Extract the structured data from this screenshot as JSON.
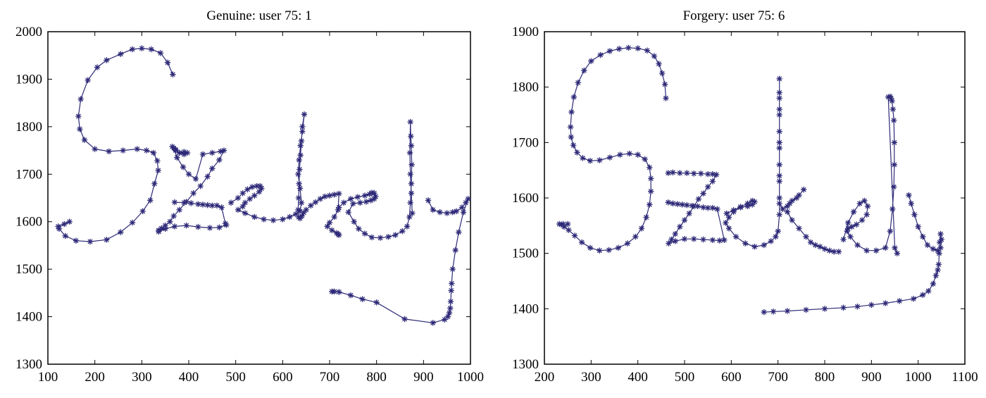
{
  "chart_data": [
    {
      "type": "line",
      "title": "Genuine: user 75: 1",
      "xlabel": "",
      "ylabel": "",
      "xlim": [
        100,
        1000
      ],
      "ylim": [
        1300,
        2000
      ],
      "xticks": [
        100,
        200,
        300,
        400,
        500,
        600,
        700,
        800,
        900,
        1000
      ],
      "yticks": [
        1300,
        1400,
        1500,
        1600,
        1700,
        1800,
        1900,
        2000
      ],
      "grid": false,
      "legend": "none",
      "marker": "asterisk",
      "series": [
        {
          "color": "#2e2a78",
          "x": [
            366,
            355,
            340,
            320,
            300,
            280,
            255,
            225,
            205,
            185,
            170,
            165,
            168,
            178,
            200,
            230,
            260,
            290,
            310,
            325,
            333,
            335,
            327,
            318,
            302,
            280,
            255,
            225,
            190,
            160,
            137,
            124,
            122,
            135,
            146
          ],
          "y": [
            1910,
            1935,
            1955,
            1963,
            1965,
            1963,
            1953,
            1940,
            1925,
            1898,
            1858,
            1822,
            1795,
            1772,
            1753,
            1748,
            1750,
            1753,
            1750,
            1745,
            1728,
            1708,
            1680,
            1645,
            1622,
            1598,
            1578,
            1562,
            1558,
            1560,
            1570,
            1585,
            1590,
            1595,
            1600
          ]
        },
        {
          "color": "#2e2a78",
          "x": [
            365,
            372,
            380,
            390,
            397,
            390,
            380,
            372,
            368,
            375,
            388,
            400,
            415,
            430,
            450,
            468,
            475,
            465,
            450,
            440,
            425,
            410,
            395,
            380,
            368,
            360,
            350,
            342,
            336,
            336,
            350,
            370,
            395,
            420,
            445,
            465,
            480,
            478,
            470,
            460,
            450,
            440,
            430,
            420,
            405,
            390,
            370
          ],
          "y": [
            1758,
            1752,
            1745,
            1742,
            1745,
            1747,
            1745,
            1750,
            1755,
            1735,
            1715,
            1700,
            1690,
            1742,
            1745,
            1748,
            1750,
            1730,
            1712,
            1695,
            1675,
            1660,
            1642,
            1625,
            1612,
            1600,
            1592,
            1586,
            1582,
            1579,
            1585,
            1590,
            1592,
            1589,
            1587,
            1588,
            1593,
            1596,
            1630,
            1634,
            1634,
            1635,
            1636,
            1637,
            1639,
            1640,
            1641
          ]
        },
        {
          "color": "#2e2a78",
          "x": [
            490,
            505,
            515,
            525,
            535,
            545,
            552,
            555,
            550,
            540,
            530,
            520,
            515,
            505,
            520,
            540,
            560,
            580,
            600,
            615,
            628,
            637,
            640,
            637,
            633,
            635,
            638,
            642,
            646,
            642,
            640,
            638,
            636,
            635,
            634,
            633,
            634,
            637,
            641,
            645,
            650,
            660,
            670,
            680,
            690,
            700,
            710,
            720,
            718,
            710,
            700,
            695,
            705,
            715,
            718,
            720
          ],
          "y": [
            1640,
            1650,
            1660,
            1668,
            1673,
            1675,
            1675,
            1670,
            1663,
            1655,
            1648,
            1640,
            1632,
            1625,
            1618,
            1610,
            1605,
            1603,
            1605,
            1610,
            1616,
            1622,
            1640,
            1670,
            1700,
            1730,
            1760,
            1790,
            1826,
            1800,
            1770,
            1740,
            1710,
            1680,
            1650,
            1625,
            1610,
            1607,
            1612,
            1619,
            1625,
            1634,
            1641,
            1648,
            1653,
            1655,
            1657,
            1659,
            1625,
            1610,
            1598,
            1590,
            1582,
            1576,
            1574,
            1572
          ]
        },
        {
          "color": "#2e2a78",
          "x": [
            720,
            730,
            745,
            760,
            775,
            785,
            790,
            795,
            798,
            795,
            788,
            778,
            765,
            750,
            740,
            752,
            762,
            775,
            790,
            808,
            825,
            840,
            855,
            865,
            870,
            872,
            874,
            875,
            874,
            873,
            872,
            871,
            872,
            874,
            876
          ],
          "y": [
            1630,
            1640,
            1648,
            1652,
            1655,
            1658,
            1661,
            1660,
            1653,
            1648,
            1645,
            1642,
            1640,
            1638,
            1620,
            1600,
            1585,
            1575,
            1567,
            1566,
            1568,
            1572,
            1580,
            1590,
            1610,
            1640,
            1680,
            1720,
            1760,
            1780,
            1810,
            1745,
            1700,
            1660,
            1618
          ]
        },
        {
          "color": "#2e2a78",
          "x": [
            910,
            920,
            935,
            950,
            962,
            970,
            982,
            990,
            995,
            985,
            975,
            968,
            962,
            960,
            959,
            958,
            957,
            955,
            952,
            945,
            920,
            860,
            800,
            770,
            745,
            720,
            710,
            705
          ],
          "y": [
            1645,
            1625,
            1620,
            1618,
            1620,
            1622,
            1630,
            1640,
            1648,
            1620,
            1578,
            1540,
            1500,
            1470,
            1455,
            1432,
            1418,
            1408,
            1400,
            1394,
            1387,
            1395,
            1430,
            1437,
            1445,
            1452,
            1453,
            1453
          ]
        }
      ]
    },
    {
      "type": "line",
      "title": "Forgery: user 75: 6",
      "xlabel": "",
      "ylabel": "",
      "xlim": [
        200,
        1100
      ],
      "ylim": [
        1300,
        1900
      ],
      "xticks": [
        200,
        300,
        400,
        500,
        600,
        700,
        800,
        900,
        1000,
        1100
      ],
      "yticks": [
        1300,
        1400,
        1500,
        1600,
        1700,
        1800,
        1900
      ],
      "grid": false,
      "legend": "none",
      "marker": "asterisk",
      "series": [
        {
          "color": "#2e2a78",
          "x": [
            460,
            458,
            452,
            445,
            435,
            420,
            400,
            380,
            360,
            340,
            320,
            300,
            285,
            272,
            263,
            258,
            256,
            257,
            262,
            270,
            282,
            298,
            318,
            340,
            362,
            382,
            400,
            415,
            425,
            428,
            428,
            425,
            418,
            408,
            395,
            378,
            358,
            338,
            318,
            298,
            280,
            265,
            252,
            242,
            236,
            232,
            240,
            250
          ],
          "y": [
            1780,
            1805,
            1825,
            1842,
            1856,
            1866,
            1870,
            1871,
            1869,
            1865,
            1858,
            1847,
            1830,
            1808,
            1782,
            1755,
            1728,
            1710,
            1695,
            1682,
            1672,
            1667,
            1668,
            1673,
            1678,
            1680,
            1678,
            1670,
            1655,
            1635,
            1612,
            1588,
            1565,
            1545,
            1530,
            1518,
            1510,
            1506,
            1505,
            1510,
            1520,
            1532,
            1542,
            1548,
            1552,
            1553,
            1553,
            1553
          ]
        },
        {
          "color": "#2e2a78",
          "x": [
            465,
            475,
            490,
            505,
            520,
            535,
            550,
            560,
            568,
            560,
            550,
            540,
            530,
            520,
            510,
            500,
            490,
            480,
            472,
            466,
            480,
            500,
            520,
            540,
            560,
            575,
            585,
            570,
            560,
            550,
            540,
            528,
            516,
            505,
            495,
            485,
            475,
            465
          ],
          "y": [
            1645,
            1646,
            1645,
            1645,
            1644,
            1644,
            1643,
            1643,
            1642,
            1630,
            1620,
            1608,
            1598,
            1585,
            1572,
            1560,
            1548,
            1535,
            1525,
            1518,
            1522,
            1526,
            1526,
            1525,
            1524,
            1523,
            1524,
            1580,
            1582,
            1582,
            1583,
            1585,
            1586,
            1587,
            1588,
            1589,
            1590,
            1592
          ]
        },
        {
          "color": "#2e2a78",
          "x": [
            590,
            605,
            620,
            635,
            645,
            650,
            645,
            635,
            620,
            605,
            595,
            588,
            595,
            610,
            630,
            650,
            670,
            685,
            695,
            700,
            703,
            703,
            703,
            703,
            703,
            703,
            703,
            703,
            703,
            703,
            703,
            703,
            703,
            703,
            710,
            725,
            740,
            755,
            745,
            730,
            720,
            720,
            730,
            745,
            760,
            770,
            780,
            790,
            800,
            810,
            820,
            830
          ],
          "y": [
            1572,
            1578,
            1584,
            1590,
            1595,
            1593,
            1588,
            1585,
            1583,
            1575,
            1565,
            1555,
            1545,
            1530,
            1518,
            1512,
            1515,
            1522,
            1530,
            1540,
            1570,
            1600,
            1630,
            1660,
            1690,
            1720,
            1750,
            1780,
            1815,
            1790,
            1760,
            1700,
            1640,
            1590,
            1580,
            1590,
            1600,
            1615,
            1605,
            1595,
            1585,
            1575,
            1560,
            1545,
            1530,
            1520,
            1515,
            1512,
            1508,
            1505,
            1503,
            1503
          ]
        },
        {
          "color": "#2e2a78",
          "x": [
            840,
            850,
            862,
            875,
            885,
            892,
            890,
            880,
            868,
            858,
            850,
            848,
            855,
            870,
            890,
            910,
            930,
            940,
            945,
            948,
            949,
            949,
            948,
            946,
            944,
            942,
            940,
            936,
            950,
            955
          ],
          "y": [
            1525,
            1555,
            1575,
            1590,
            1595,
            1585,
            1570,
            1560,
            1552,
            1548,
            1545,
            1540,
            1530,
            1515,
            1505,
            1505,
            1510,
            1540,
            1580,
            1620,
            1660,
            1700,
            1740,
            1760,
            1775,
            1780,
            1783,
            1782,
            1510,
            1500
          ]
        },
        {
          "color": "#2e2a78",
          "x": [
            980,
            985,
            992,
            1000,
            1010,
            1020,
            1032,
            1042,
            1048,
            1050,
            1048,
            1046,
            1045,
            1044,
            1042,
            1038,
            1032,
            1022,
            1010,
            990,
            960,
            930,
            900,
            870,
            840,
            800,
            760,
            720,
            690,
            670
          ],
          "y": [
            1605,
            1590,
            1570,
            1548,
            1530,
            1515,
            1508,
            1505,
            1510,
            1525,
            1535,
            1520,
            1500,
            1480,
            1470,
            1460,
            1445,
            1432,
            1425,
            1418,
            1414,
            1410,
            1407,
            1404,
            1402,
            1400,
            1398,
            1396,
            1395,
            1394
          ]
        }
      ]
    }
  ]
}
